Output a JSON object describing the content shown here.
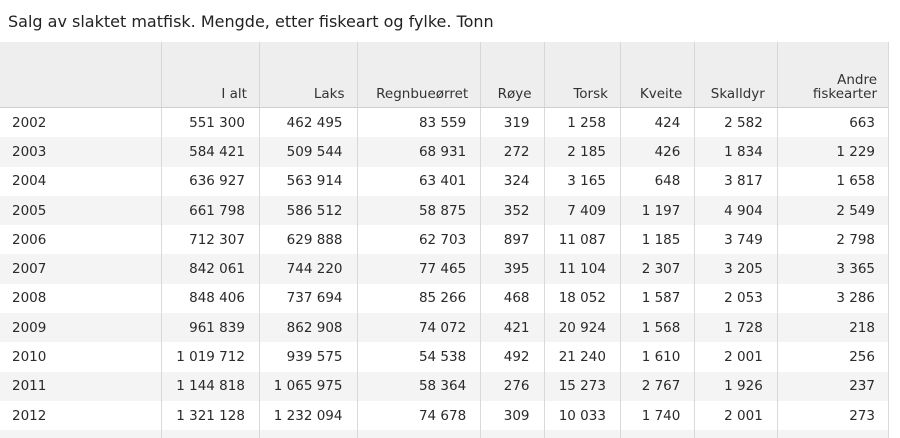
{
  "title": "Salg av slaktet matfisk. Mengde, etter fiskeart og fylke. Tonn",
  "columns": [
    "",
    "I alt",
    "Laks",
    "Regnbueørret",
    "Røye",
    "Torsk",
    "Kveite",
    "Skalldyr",
    "Andre fiskearter"
  ],
  "rows": [
    [
      "2002",
      "551 300",
      "462 495",
      "83 559",
      "319",
      "1 258",
      "424",
      "2 582",
      "663"
    ],
    [
      "2003",
      "584 421",
      "509 544",
      "68 931",
      "272",
      "2 185",
      "426",
      "1 834",
      "1 229"
    ],
    [
      "2004",
      "636 927",
      "563 914",
      "63 401",
      "324",
      "3 165",
      "648",
      "3 817",
      "1 658"
    ],
    [
      "2005",
      "661 798",
      "586 512",
      "58 875",
      "352",
      "7 409",
      "1 197",
      "4 904",
      "2 549"
    ],
    [
      "2006",
      "712 307",
      "629 888",
      "62 703",
      "897",
      "11 087",
      "1 185",
      "3 749",
      "2 798"
    ],
    [
      "2007",
      "842 061",
      "744 220",
      "77 465",
      "395",
      "11 104",
      "2 307",
      "3 205",
      "3 365"
    ],
    [
      "2008",
      "848 406",
      "737 694",
      "85 266",
      "468",
      "18 052",
      "1 587",
      "2 053",
      "3 286"
    ],
    [
      "2009",
      "961 839",
      "862 908",
      "74 072",
      "421",
      "20 924",
      "1 568",
      "1 728",
      "218"
    ],
    [
      "2010",
      "1 019 712",
      "939 575",
      "54 538",
      "492",
      "21 240",
      "1 610",
      "2 001",
      "256"
    ],
    [
      "2011",
      "1 144 818",
      "1 065 975",
      "58 364",
      "276",
      "15 273",
      "2 767",
      "1 926",
      "237"
    ],
    [
      "2012",
      "1 321 128",
      "1 232 094",
      "74 678",
      "309",
      "10 033",
      "1 740",
      "2 001",
      "273"
    ]
  ]
}
